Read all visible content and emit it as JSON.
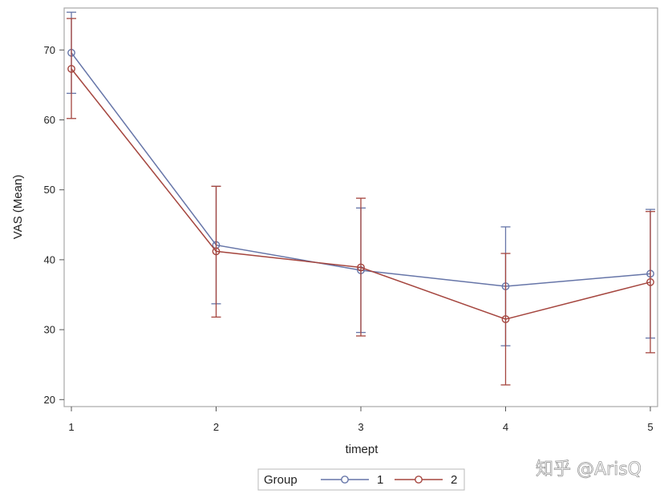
{
  "watermark": "知乎 @ArisQ",
  "chart_data": {
    "type": "line",
    "title": "",
    "xlabel": "timept",
    "ylabel": "VAS (Mean)",
    "x": [
      1,
      2,
      3,
      4,
      5
    ],
    "x_ticks": [
      "1",
      "2",
      "3",
      "4",
      "5"
    ],
    "y_ticks": [
      "20",
      "30",
      "40",
      "50",
      "60",
      "70"
    ],
    "xlim": [
      0.95,
      5.05
    ],
    "ylim": [
      19,
      76
    ],
    "grid": false,
    "legend": {
      "title": "Group",
      "position": "bottom-center"
    },
    "error_bars": true,
    "series": [
      {
        "name": "1",
        "color": "#6675a8",
        "values": [
          69.6,
          42.1,
          38.5,
          36.2,
          38.0
        ],
        "lower": [
          63.8,
          33.7,
          29.6,
          27.7,
          28.8
        ],
        "upper": [
          75.4,
          50.5,
          47.4,
          44.7,
          47.2
        ]
      },
      {
        "name": "2",
        "color": "#a5463f",
        "values": [
          67.3,
          41.2,
          38.9,
          31.5,
          36.8
        ],
        "lower": [
          60.2,
          31.8,
          29.1,
          22.1,
          26.7
        ],
        "upper": [
          74.5,
          50.5,
          48.8,
          40.9,
          46.9
        ]
      }
    ]
  }
}
